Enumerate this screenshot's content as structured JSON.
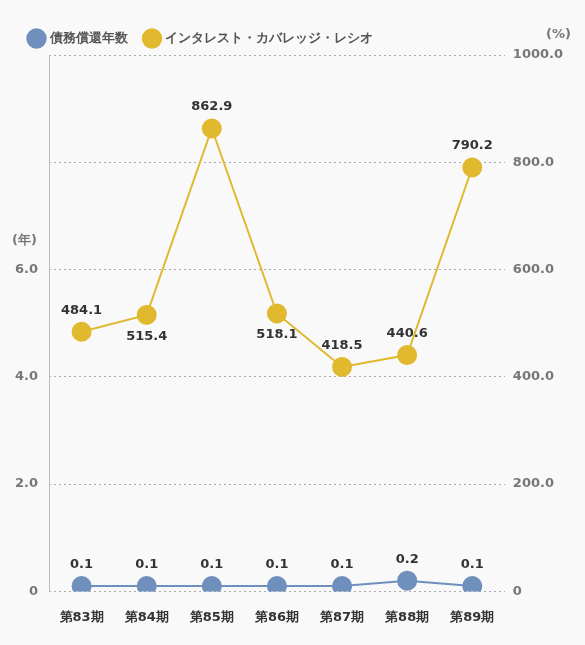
{
  "chart_data": {
    "type": "line",
    "categories": [
      "第83期",
      "第84期",
      "第85期",
      "第86期",
      "第87期",
      "第88期",
      "第89期"
    ],
    "series": [
      {
        "name": "債務償還年数",
        "color": "#6f8fbd",
        "axis": "y",
        "marker": "circle",
        "values": [
          0.1,
          0.1,
          0.1,
          0.1,
          0.1,
          0.2,
          0.1
        ]
      },
      {
        "name": "インタレスト・カバレッジ・レシオ",
        "color": "#e0b92f",
        "axis": "y2",
        "marker": "circle",
        "values": [
          484.1,
          515.4,
          862.9,
          518.1,
          418.5,
          440.6,
          790.2
        ]
      }
    ],
    "ylabel": "(年)",
    "y2label": "(%)",
    "ylim": [
      0,
      10
    ],
    "yticks": [
      0,
      {
        "value": 2,
        "label": "2.0"
      },
      {
        "value": 4,
        "label": "4.0"
      },
      {
        "value": 6,
        "label": "6.0"
      }
    ],
    "y2lim": [
      0,
      1000
    ],
    "y2ticks": [
      0,
      {
        "value": 200,
        "label": "200.0"
      },
      {
        "value": 400,
        "label": "400.0"
      },
      {
        "value": 600,
        "label": "600.0"
      },
      {
        "value": 800,
        "label": "800.0"
      },
      {
        "value": 1000,
        "label": "1000.0"
      }
    ],
    "grid": true,
    "legend": "top-left",
    "data_labels": true
  }
}
